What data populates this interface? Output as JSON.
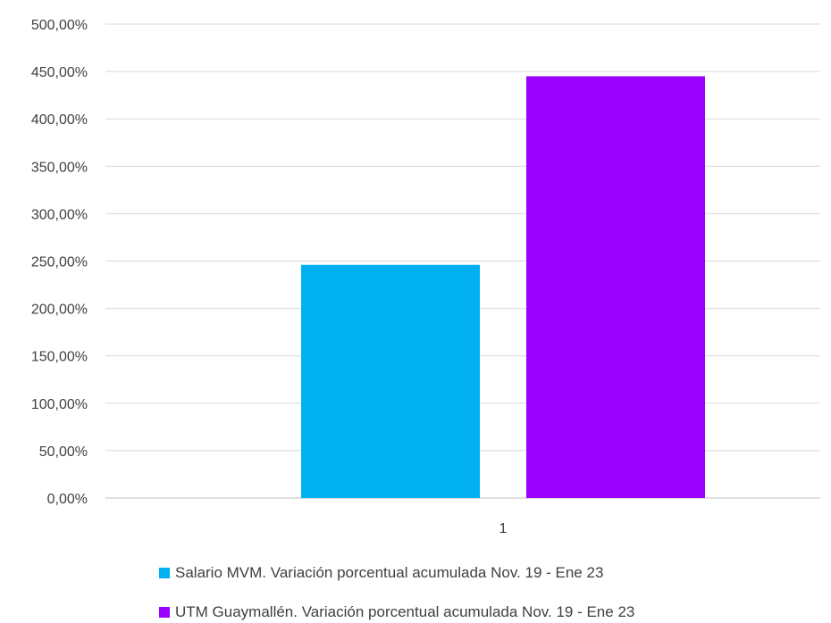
{
  "chart_data": {
    "type": "bar",
    "categories": [
      "1"
    ],
    "series": [
      {
        "name": "Salario MVM. Variación porcentual acumulada  Nov. 19 - Ene 23",
        "values": [
          246
        ],
        "color": "#00B0F0"
      },
      {
        "name": "UTM Guaymallén. Variación porcentual acumulada  Nov. 19 - Ene 23",
        "values": [
          445
        ],
        "color": "#9900FF"
      }
    ],
    "ylim": [
      0,
      500
    ],
    "yticks": [
      "0,00%",
      "50,00%",
      "100,00%",
      "150,00%",
      "200,00%",
      "250,00%",
      "300,00%",
      "350,00%",
      "400,00%",
      "450,00%",
      "500,00%"
    ],
    "grid": true,
    "legend_position": "bottom"
  }
}
